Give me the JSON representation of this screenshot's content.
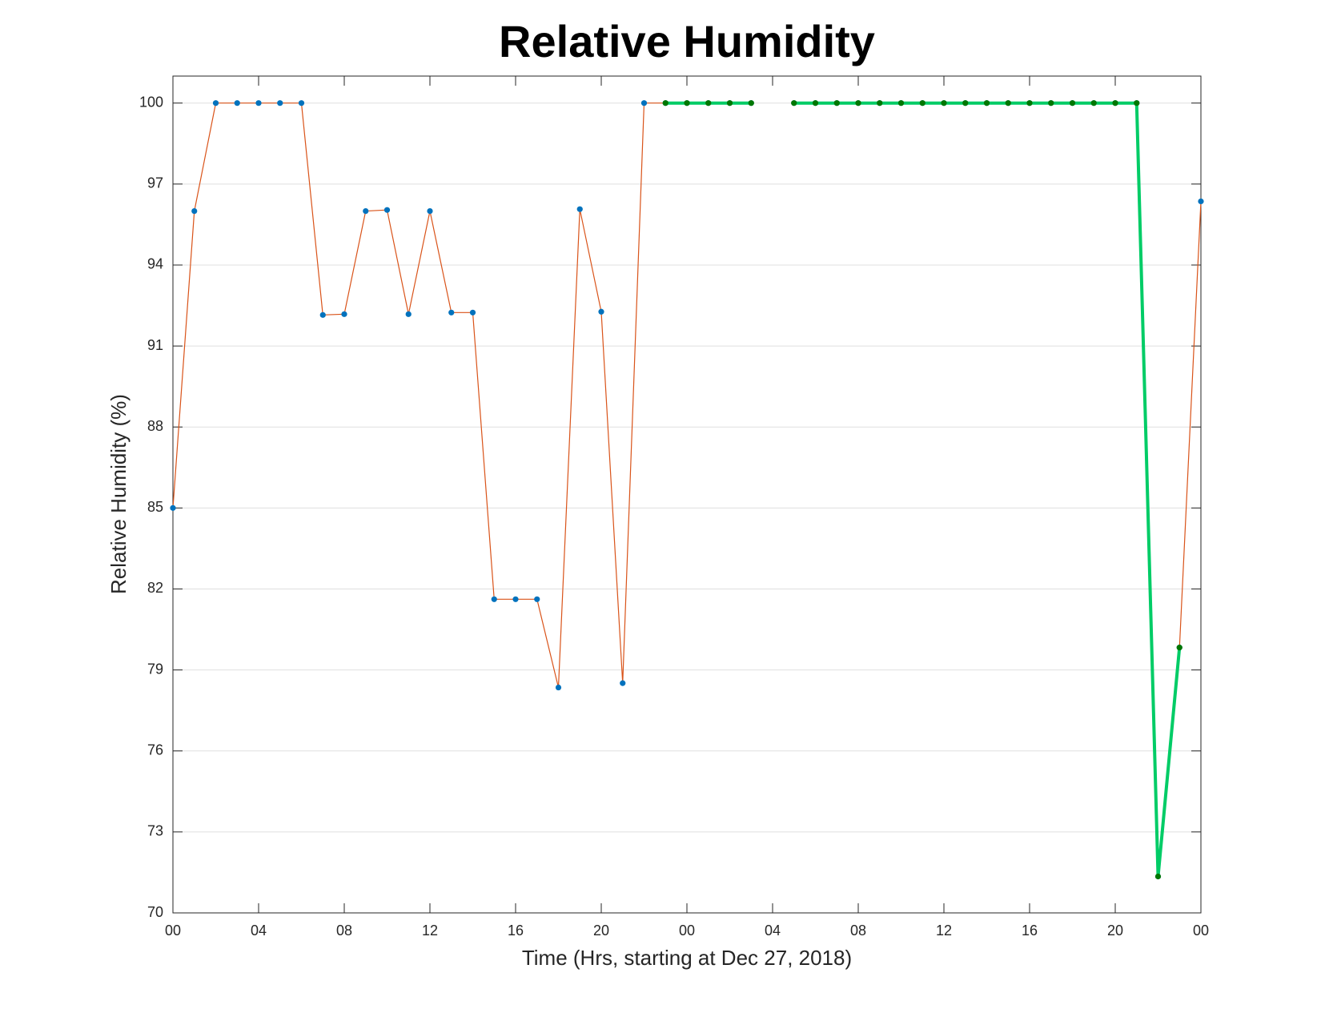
{
  "chart_data": {
    "type": "line",
    "title": "Relative Humidity",
    "xlabel": "Time (Hrs, starting at Dec 27, 2018)",
    "ylabel": "Relative Humidity (%)",
    "x": [
      0,
      1,
      2,
      3,
      4,
      5,
      6,
      7,
      8,
      9,
      10,
      11,
      12,
      13,
      14,
      15,
      16,
      17,
      18,
      19,
      20,
      21,
      22,
      23,
      24,
      25,
      26,
      27,
      28,
      29,
      30,
      31,
      32,
      33,
      34,
      35,
      36,
      37,
      38,
      39,
      40,
      41,
      42,
      43,
      44,
      45,
      46,
      47,
      48
    ],
    "series": [
      {
        "color": "#D95319",
        "marker_color": "#0072BD",
        "line_width": 1.2,
        "values": [
          85.0,
          96.0,
          100,
          100,
          100,
          100,
          100,
          92.15,
          92.18,
          96.0,
          96.04,
          92.18,
          96.0,
          92.24,
          92.24,
          81.62,
          81.62,
          81.62,
          78.35,
          96.07,
          92.27,
          78.51,
          100,
          100,
          100,
          100,
          100,
          100,
          null,
          100,
          100,
          100,
          100,
          100,
          100,
          100,
          100,
          100,
          100,
          100,
          100,
          100,
          100,
          100,
          100,
          100,
          71.35,
          79.83,
          96.36
        ]
      },
      {
        "color": "#00CC66",
        "marker_color": "#007700",
        "line_width": 4,
        "values": [
          null,
          null,
          null,
          null,
          null,
          null,
          null,
          null,
          null,
          null,
          null,
          null,
          null,
          null,
          null,
          null,
          null,
          null,
          null,
          null,
          null,
          null,
          null,
          100,
          100,
          100,
          100,
          100,
          null,
          100,
          100,
          100,
          100,
          100,
          100,
          100,
          100,
          100,
          100,
          100,
          100,
          100,
          100,
          100,
          100,
          100,
          71.35,
          79.83,
          null
        ]
      }
    ],
    "xlim": [
      0,
      48
    ],
    "xticks": [
      {
        "value": 0,
        "label": "00"
      },
      {
        "value": 4,
        "label": "04"
      },
      {
        "value": 8,
        "label": "08"
      },
      {
        "value": 12,
        "label": "12"
      },
      {
        "value": 16,
        "label": "16"
      },
      {
        "value": 20,
        "label": "20"
      },
      {
        "value": 24,
        "label": "00"
      },
      {
        "value": 28,
        "label": "04"
      },
      {
        "value": 32,
        "label": "08"
      },
      {
        "value": 36,
        "label": "12"
      },
      {
        "value": 40,
        "label": "16"
      },
      {
        "value": 44,
        "label": "20"
      },
      {
        "value": 48,
        "label": "00"
      }
    ],
    "ylim": [
      70,
      101
    ],
    "yticks": [
      70,
      73,
      76,
      79,
      82,
      85,
      88,
      91,
      94,
      97,
      100
    ],
    "ygrid": true
  }
}
